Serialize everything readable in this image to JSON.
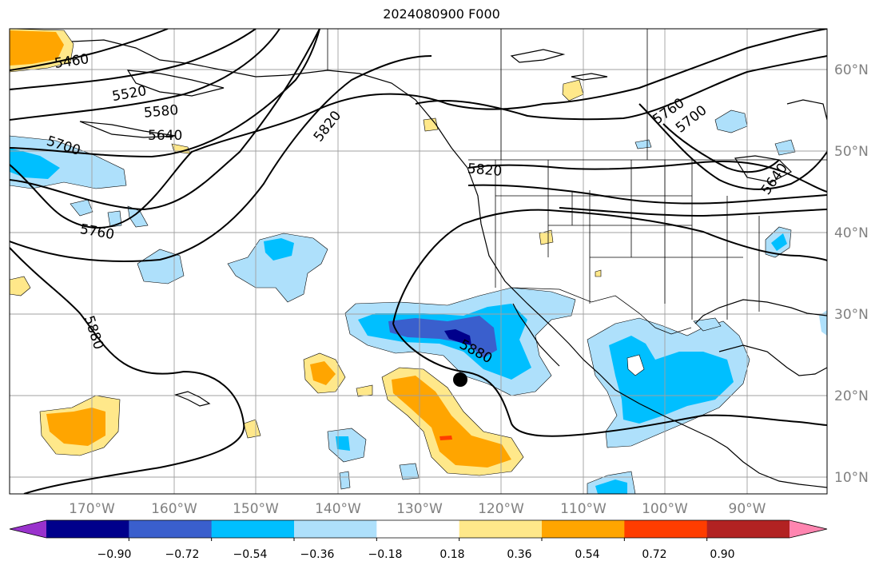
{
  "title": "2024080900 F000",
  "lat_labels": [
    "60°N",
    "50°N",
    "40°N",
    "30°N",
    "20°N",
    "10°N"
  ],
  "lon_labels": [
    "170°W",
    "160°W",
    "150°W",
    "140°W",
    "130°W",
    "120°W",
    "110°W",
    "100°W",
    "90°W"
  ],
  "contour_labels": [
    "5460",
    "5520",
    "5580",
    "5640",
    "5700",
    "5760",
    "5820",
    "5820",
    "5880",
    "5880",
    "5760",
    "5700",
    "5640"
  ],
  "colorbar": {
    "ticks": [
      "−0.90",
      "−0.72",
      "−0.54",
      "−0.36",
      "−0.18",
      "0.18",
      "0.36",
      "0.54",
      "0.72",
      "0.90"
    ],
    "colors": [
      "#9932cc",
      "#00008b",
      "#3a5fcd",
      "#00bfff",
      "#aee0fb",
      "#ffffff",
      "#ffe88a",
      "#ffa500",
      "#ff3d00",
      "#b22222",
      "#ff85b0"
    ]
  },
  "colors": {
    "land_outline": "#000000",
    "grid": "#a0a0a0",
    "axis_label": "#808080"
  }
}
